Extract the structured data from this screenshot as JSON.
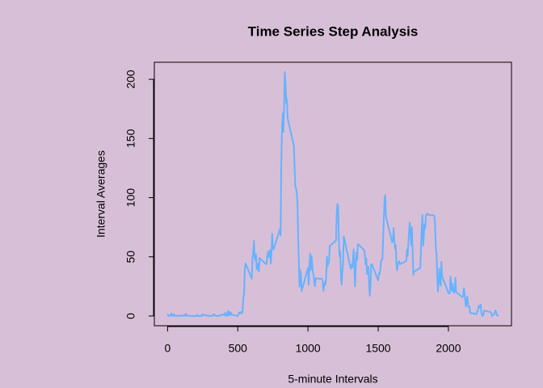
{
  "chart_data": {
    "type": "line",
    "title": "Time Series Step Analysis",
    "x_label": "5-minute Intervals",
    "y_label": "Interval Averages",
    "xlim": [
      -94.2,
      2449.2
    ],
    "xticks": [
      0,
      500,
      1000,
      1500,
      2000
    ],
    "ylim": [
      -8.25,
      214.42
    ],
    "yticks": [
      0,
      50,
      100,
      150,
      200
    ],
    "series": [
      {
        "color": "#66b2ff",
        "x": [
          0,
          5,
          10,
          15,
          20,
          25,
          30,
          35,
          40,
          45,
          50,
          55,
          100,
          105,
          110,
          115,
          120,
          125,
          130,
          135,
          140,
          145,
          150,
          155,
          200,
          205,
          210,
          215,
          220,
          225,
          230,
          235,
          240,
          245,
          250,
          255,
          300,
          305,
          310,
          315,
          320,
          325,
          330,
          335,
          340,
          345,
          350,
          355,
          400,
          405,
          410,
          415,
          420,
          425,
          430,
          435,
          440,
          445,
          450,
          455,
          500,
          505,
          510,
          515,
          520,
          525,
          530,
          535,
          540,
          545,
          550,
          555,
          600,
          605,
          610,
          615,
          620,
          625,
          630,
          635,
          640,
          645,
          650,
          655,
          700,
          705,
          710,
          715,
          720,
          725,
          730,
          735,
          740,
          745,
          750,
          755,
          800,
          805,
          810,
          815,
          820,
          825,
          830,
          835,
          840,
          845,
          850,
          855,
          900,
          905,
          910,
          915,
          920,
          925,
          930,
          935,
          940,
          945,
          950,
          955,
          1000,
          1005,
          1010,
          1015,
          1020,
          1025,
          1030,
          1035,
          1040,
          1045,
          1050,
          1055,
          1100,
          1105,
          1110,
          1115,
          1120,
          1125,
          1130,
          1135,
          1140,
          1145,
          1150,
          1155,
          1200,
          1205,
          1210,
          1215,
          1220,
          1225,
          1230,
          1235,
          1240,
          1245,
          1250,
          1255,
          1300,
          1305,
          1310,
          1315,
          1320,
          1325,
          1330,
          1335,
          1340,
          1345,
          1350,
          1355,
          1400,
          1405,
          1410,
          1415,
          1420,
          1425,
          1430,
          1435,
          1440,
          1445,
          1450,
          1455,
          1500,
          1505,
          1510,
          1515,
          1520,
          1525,
          1530,
          1535,
          1540,
          1545,
          1550,
          1555,
          1600,
          1605,
          1610,
          1615,
          1620,
          1625,
          1630,
          1635,
          1640,
          1645,
          1650,
          1655,
          1700,
          1705,
          1710,
          1715,
          1720,
          1725,
          1730,
          1735,
          1740,
          1745,
          1750,
          1755,
          1800,
          1805,
          1810,
          1815,
          1820,
          1825,
          1830,
          1835,
          1840,
          1845,
          1850,
          1855,
          1900,
          1905,
          1910,
          1915,
          1920,
          1925,
          1930,
          1935,
          1940,
          1945,
          1950,
          1955,
          2000,
          2005,
          2010,
          2015,
          2020,
          2025,
          2030,
          2035,
          2040,
          2045,
          2050,
          2055,
          2100,
          2105,
          2110,
          2115,
          2120,
          2125,
          2130,
          2135,
          2140,
          2145,
          2150,
          2155,
          2200,
          2205,
          2210,
          2215,
          2220,
          2225,
          2230,
          2235,
          2240,
          2245,
          2250,
          2255,
          2300,
          2305,
          2310,
          2315,
          2320,
          2325,
          2330,
          2335,
          2340,
          2345,
          2350,
          2355
        ],
        "values": [
          1.7,
          0.3,
          0.1,
          0.2,
          0.1,
          2.1,
          0.5,
          0.9,
          0,
          1.5,
          0.3,
          0.1,
          0.3,
          0.7,
          0.2,
          0.3,
          0,
          1.1,
          1.8,
          0.2,
          0.2,
          0.4,
          0.3,
          0,
          0,
          0,
          1.1,
          0,
          0,
          0.1,
          0,
          0.2,
          0,
          0,
          1.5,
          0.9,
          0,
          0,
          0,
          0,
          0.2,
          0.6,
          1.6,
          0.6,
          0.5,
          0.1,
          0,
          0,
          1.2,
          0.9,
          2.6,
          0,
          0.3,
          0.4,
          4.1,
          0.7,
          3.5,
          0.8,
          3.1,
          1.1,
          0,
          1.6,
          3,
          2.2,
          3.3,
          3,
          2.1,
          6.1,
          16,
          18.3,
          39.5,
          44.5,
          31.5,
          49.3,
          53.8,
          63.5,
          50,
          47.1,
          52.2,
          39.3,
          44,
          44.2,
          37.4,
          49,
          43.8,
          44.4,
          50.5,
          54.5,
          49.9,
          51,
          55.7,
          44.3,
          52.3,
          69.5,
          57.8,
          56.2,
          73.4,
          68.2,
          129.4,
          157.5,
          171.2,
          155.4,
          177.3,
          206.2,
          195.9,
          179.6,
          183.4,
          167,
          143.5,
          124,
          109.1,
          108.1,
          103.7,
          96,
          66.2,
          45.2,
          24.8,
          38.8,
          35,
          21.1,
          40.6,
          26.5,
          42.4,
          52.7,
          38.9,
          50.8,
          44.3,
          37.4,
          34.7,
          28.3,
          25.1,
          31.9,
          31.4,
          29.7,
          21.3,
          25.5,
          28.4,
          26.5,
          33.4,
          50,
          42,
          44.6,
          46,
          59.2,
          63.9,
          87.7,
          94.8,
          92.8,
          63.4,
          50.2,
          54.5,
          32.4,
          26.5,
          37.7,
          45.1,
          67.3,
          42.3,
          39.9,
          43.3,
          41,
          46.2,
          56.4,
          42.8,
          25.1,
          40,
          53.5,
          47.3,
          60.8,
          55.8,
          52,
          43.6,
          48.7,
          35.5,
          37.5,
          41.8,
          27.5,
          17.1,
          26.1,
          43.6,
          43.8,
          30,
          36.1,
          35.5,
          38.8,
          46,
          47.8,
          48.1,
          65.3,
          82.9,
          98.7,
          102.1,
          84,
          62.1,
          64.1,
          74.5,
          63.2,
          56.9,
          59.8,
          43.9,
          38.6,
          44.7,
          45.5,
          46.2,
          43.7,
          46.6,
          56.3,
          50.7,
          61.2,
          72.7,
          78.9,
          68.9,
          59.7,
          75.1,
          56.5,
          34.8,
          37.5,
          40.7,
          58,
          74.7,
          85.3,
          59.3,
          67.8,
          77.7,
          74.2,
          85.3,
          85.5,
          86.6,
          85.6,
          84.9,
          77.8,
          58,
          53.4,
          36.3,
          20.7,
          27.4,
          40,
          30.2,
          25.5,
          45.7,
          33.5,
          19.6,
          19,
          19.3,
          33.3,
          26.8,
          21.2,
          27.3,
          21.3,
          19.5,
          21.3,
          32.3,
          20.2,
          15.9,
          17.2,
          23.5,
          19.2,
          12.5,
          8,
          14.7,
          16.3,
          8.7,
          7.8,
          8.1,
          2.6,
          1.5,
          3.7,
          4.8,
          8.5,
          7.1,
          8.7,
          9.8,
          2.2,
          0.3,
          0.1,
          1.6,
          4.6,
          3.3,
          2.8,
          0,
          0.8,
          1,
          1.6,
          2.6,
          4.7,
          3.3,
          0.6,
          0.2,
          1.1
        ]
      }
    ]
  }
}
